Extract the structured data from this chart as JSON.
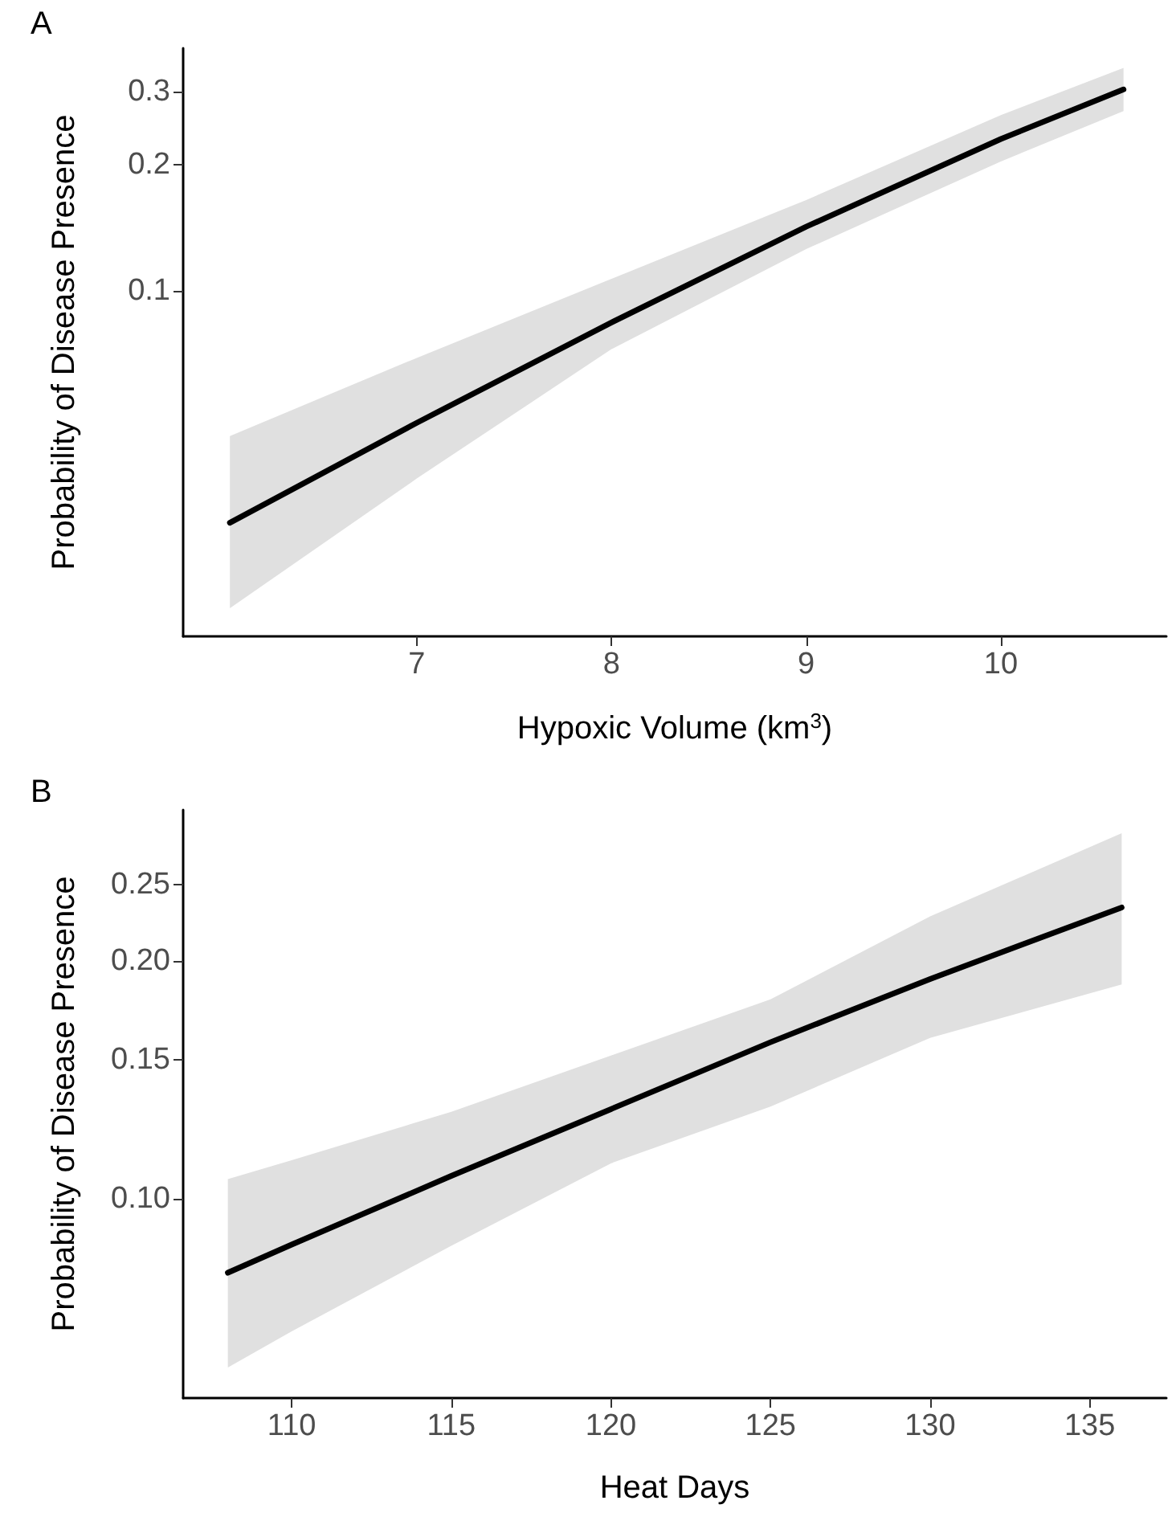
{
  "chart_data": [
    {
      "type": "line",
      "title": "A",
      "xlabel": "Hypoxic Volume (km$^{3}$)",
      "ylabel": "Probability of Disease Presence",
      "log": true,
      "x": [
        6.04,
        7,
        8,
        9,
        10,
        10.63
      ],
      "series": [
        {
          "color": "#000000",
          "values": [
            0.028,
            0.0485,
            0.0842,
            0.1425,
            0.2307,
            0.303
          ],
          "lower": [
            0.0175,
            0.0357,
            0.0727,
            0.126,
            0.204,
            0.269
          ],
          "upper": [
            0.0451,
            0.0693,
            0.107,
            0.165,
            0.263,
            0.341
          ]
        }
      ],
      "xlim": [
        5.8,
        10.85
      ],
      "xticks": [
        7,
        8,
        9,
        10
      ],
      "ylim": [
        0.015,
        0.38
      ],
      "yticks": [
        0.1,
        0.2,
        0.3
      ]
    },
    {
      "type": "line",
      "title": "B",
      "xlabel": "Heat Days",
      "ylabel": "Probability of Disease Presence",
      "log": true,
      "x": [
        108,
        110,
        115,
        120,
        125,
        130,
        136
      ],
      "series": [
        {
          "color": "#000000",
          "values": [
            0.0807,
            0.0876,
            0.107,
            0.13,
            0.158,
            0.19,
            0.234
          ],
          "lower": [
            0.0612,
            0.068,
            0.0873,
            0.111,
            0.131,
            0.16,
            0.187
          ],
          "upper": [
            0.106,
            0.112,
            0.129,
            0.152,
            0.179,
            0.228,
            0.2905
          ]
        }
      ],
      "xlim": [
        106.6,
        137.4
      ],
      "xticks": [
        110,
        115,
        120,
        125,
        130,
        135
      ],
      "ylim": [
        0.056,
        0.311
      ],
      "yticks": [
        {
          "value": 0.1,
          "label": "0.10"
        },
        {
          "value": 0.15,
          "label": "0.15"
        },
        {
          "value": 0.2,
          "label": "0.20"
        },
        {
          "value": 0.25,
          "label": "0.25"
        }
      ]
    }
  ]
}
